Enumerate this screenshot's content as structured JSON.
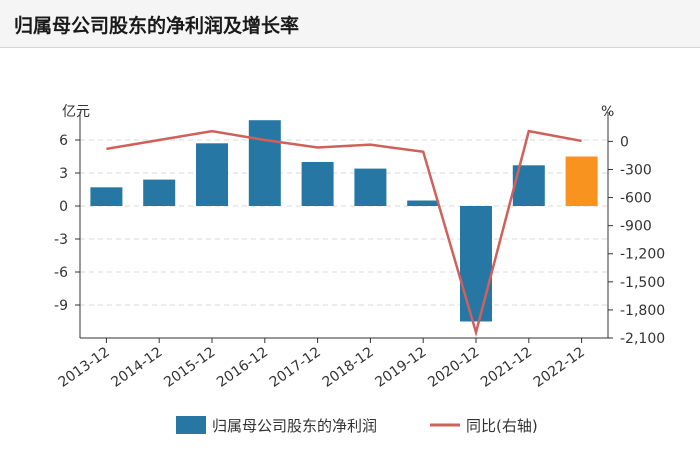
{
  "header": {
    "title": "归属母公司股东的净利润及增长率"
  },
  "chart_data": {
    "type": "bar",
    "categories": [
      "2013-12",
      "2014-12",
      "2015-12",
      "2016-12",
      "2017-12",
      "2018-12",
      "2019-12",
      "2020-12",
      "2021-12",
      "2022-12"
    ],
    "series": [
      {
        "name": "归属母公司股东的净利润",
        "type": "bar",
        "axis": "left",
        "values": [
          1.7,
          2.4,
          5.7,
          7.8,
          4.0,
          3.4,
          0.5,
          -10.5,
          3.7,
          4.5
        ],
        "color": "#2777a5",
        "highlight_last_color": "#f7931e"
      },
      {
        "name": "同比(右轴)",
        "type": "line",
        "axis": "right",
        "values": [
          -80,
          15,
          110,
          15,
          -65,
          -35,
          -110,
          -2040,
          110,
          5
        ],
        "color": "#d0605a"
      }
    ],
    "left_axis": {
      "unit": "亿元",
      "ylim": [
        -12,
        8
      ],
      "ticks": [
        6,
        3,
        0,
        -3,
        -6,
        -9
      ]
    },
    "right_axis": {
      "unit": "%",
      "ylim": [
        -2100,
        250
      ],
      "ticks": [
        0,
        -300,
        -600,
        -900,
        -1200,
        -1500,
        -1800,
        -2100
      ],
      "tick_labels": [
        "0",
        "-300",
        "-600",
        "-900",
        "-1,200",
        "-1,500",
        "-1,800",
        "-2,100"
      ]
    },
    "grid": true,
    "legend": "bottom"
  }
}
